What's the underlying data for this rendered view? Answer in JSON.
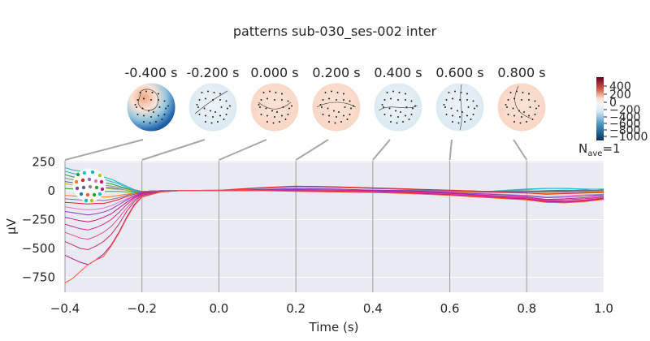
{
  "figure": {
    "title": "patterns sub-030_ses-002 inter",
    "nave_label": "N",
    "nave_subscript": "ave",
    "nave_value": "=1"
  },
  "topomaps": {
    "times": [
      "-0.400 s",
      "-0.200 s",
      "0.000 s",
      "0.200 s",
      "0.400 s",
      "0.600 s",
      "0.800 s"
    ],
    "anchor_times": [
      -0.4,
      -0.2,
      0.0,
      0.2,
      0.4,
      0.6,
      0.8
    ],
    "intensity": [
      1.0,
      0.12,
      0.15,
      0.18,
      0.1,
      0.1,
      0.15
    ],
    "colorbar": {
      "ticks": [
        "400",
        "200",
        "0",
        "−200",
        "−400",
        "−600",
        "−800",
        "−1000"
      ],
      "colors": {
        "high": "#67001f",
        "mid": "#f7f7f7",
        "low": "#053061"
      }
    }
  },
  "chart_data": {
    "type": "line",
    "title": "patterns sub-030_ses-002 inter",
    "xlabel": "Time (s)",
    "ylabel": "µV",
    "xlim": [
      -0.4,
      1.0
    ],
    "ylim": [
      -880,
      260
    ],
    "x_ticks": [
      "−0.4",
      "−0.2",
      "0.0",
      "0.2",
      "0.4",
      "0.6",
      "0.8",
      "1.0"
    ],
    "y_ticks": [
      "250",
      "0",
      "−250",
      "−500",
      "−750"
    ],
    "x_tick_values": [
      -0.4,
      -0.2,
      0.0,
      0.2,
      0.4,
      0.6,
      0.8,
      1.0
    ],
    "y_tick_values": [
      250,
      0,
      -250,
      -500,
      -750
    ],
    "grid": true,
    "x": [
      -0.4,
      -0.38,
      -0.36,
      -0.34,
      -0.32,
      -0.3,
      -0.28,
      -0.26,
      -0.24,
      -0.22,
      -0.2,
      -0.15,
      -0.1,
      0.0,
      0.1,
      0.2,
      0.3,
      0.4,
      0.5,
      0.6,
      0.7,
      0.8,
      0.85,
      0.9,
      0.95,
      1.0
    ],
    "series": [
      {
        "color": "#1fb5b5",
        "values": [
          200,
          180,
          170,
          150,
          130,
          120,
          100,
          70,
          40,
          10,
          -5,
          0,
          0,
          0,
          5,
          5,
          0,
          0,
          5,
          0,
          -5,
          15,
          20,
          20,
          10,
          15
        ]
      },
      {
        "color": "#17becf",
        "values": [
          170,
          150,
          140,
          120,
          110,
          100,
          80,
          60,
          30,
          5,
          -5,
          0,
          0,
          0,
          5,
          5,
          0,
          5,
          0,
          0,
          -5,
          10,
          20,
          20,
          15,
          10
        ]
      },
      {
        "color": "#2ca02c",
        "values": [
          140,
          120,
          110,
          95,
          80,
          70,
          60,
          40,
          20,
          0,
          -5,
          0,
          0,
          0,
          5,
          10,
          5,
          0,
          0,
          -5,
          -10,
          -5,
          0,
          5,
          0,
          5
        ]
      },
      {
        "color": "#8c8c8c",
        "values": [
          110,
          95,
          85,
          70,
          60,
          50,
          40,
          30,
          15,
          0,
          -5,
          0,
          0,
          0,
          10,
          15,
          10,
          5,
          0,
          0,
          -5,
          0,
          -5,
          0,
          5,
          0
        ]
      },
      {
        "color": "#5c5c8a",
        "values": [
          80,
          70,
          60,
          50,
          40,
          30,
          25,
          15,
          5,
          -5,
          -5,
          0,
          0,
          0,
          5,
          10,
          5,
          0,
          0,
          0,
          -5,
          -5,
          0,
          0,
          0,
          0
        ]
      },
      {
        "color": "#bcbd22",
        "values": [
          60,
          50,
          45,
          35,
          30,
          25,
          15,
          10,
          5,
          -5,
          -5,
          0,
          0,
          0,
          0,
          5,
          5,
          0,
          -5,
          -5,
          -10,
          -10,
          -15,
          -10,
          -5,
          -5
        ]
      },
      {
        "color": "#2ca02c",
        "values": [
          20,
          15,
          10,
          5,
          0,
          -5,
          -5,
          -5,
          -10,
          -10,
          -5,
          0,
          0,
          0,
          5,
          10,
          5,
          0,
          0,
          -5,
          -5,
          -10,
          -10,
          -5,
          -5,
          0
        ]
      },
      {
        "color": "#ff7f0e",
        "values": [
          -40,
          -45,
          -50,
          -55,
          -50,
          -55,
          -50,
          -40,
          -30,
          -20,
          -10,
          -5,
          0,
          0,
          5,
          10,
          5,
          0,
          -5,
          -10,
          -15,
          -20,
          -25,
          -20,
          -15,
          -10
        ]
      },
      {
        "color": "#9467bd",
        "values": [
          -70,
          -75,
          -80,
          -85,
          -80,
          -85,
          -75,
          -60,
          -40,
          -20,
          -10,
          0,
          0,
          5,
          20,
          35,
          30,
          20,
          10,
          0,
          -10,
          -10,
          -5,
          -10,
          -5,
          0
        ]
      },
      {
        "color": "#d62728",
        "values": [
          -100,
          -105,
          -110,
          -115,
          -110,
          -110,
          -95,
          -75,
          -50,
          -30,
          -15,
          -5,
          0,
          5,
          25,
          40,
          35,
          25,
          15,
          5,
          -5,
          -20,
          -30,
          -25,
          -20,
          -15
        ]
      },
      {
        "color": "#e377c2",
        "values": [
          -140,
          -150,
          -160,
          -165,
          -160,
          -150,
          -130,
          -100,
          -70,
          -40,
          -20,
          -5,
          0,
          5,
          10,
          15,
          10,
          5,
          0,
          -10,
          -25,
          -40,
          -50,
          -45,
          -35,
          -30
        ]
      },
      {
        "color": "#7f3fbf",
        "values": [
          -180,
          -190,
          -200,
          -210,
          -200,
          -185,
          -160,
          -120,
          -80,
          -45,
          -20,
          -5,
          0,
          0,
          10,
          20,
          15,
          5,
          0,
          -15,
          -30,
          -45,
          -60,
          -55,
          -45,
          -35
        ]
      },
      {
        "color": "#c71585",
        "values": [
          -230,
          -245,
          -260,
          -270,
          -255,
          -230,
          -200,
          -150,
          -100,
          -55,
          -25,
          -5,
          0,
          0,
          5,
          10,
          5,
          0,
          -5,
          -20,
          -40,
          -55,
          -75,
          -70,
          -60,
          -45
        ]
      },
      {
        "color": "#d62790",
        "values": [
          -290,
          -310,
          -330,
          -340,
          -320,
          -290,
          -250,
          -190,
          -120,
          -65,
          -30,
          -5,
          0,
          0,
          5,
          5,
          0,
          -5,
          -10,
          -25,
          -45,
          -60,
          -80,
          -80,
          -70,
          -55
        ]
      },
      {
        "color": "#e84c8a",
        "values": [
          -360,
          -385,
          -410,
          -420,
          -395,
          -360,
          -310,
          -235,
          -150,
          -80,
          -35,
          -5,
          0,
          0,
          0,
          5,
          0,
          -5,
          -15,
          -30,
          -50,
          -65,
          -85,
          -90,
          -80,
          -60
        ]
      },
      {
        "color": "#c03060",
        "values": [
          -440,
          -470,
          -500,
          -510,
          -480,
          -440,
          -380,
          -290,
          -180,
          -95,
          -40,
          -5,
          0,
          0,
          0,
          0,
          -5,
          -10,
          -20,
          -35,
          -55,
          -70,
          -90,
          -95,
          -85,
          -65
        ]
      },
      {
        "color": "#b5179e",
        "values": [
          -560,
          -590,
          -620,
          -640,
          -600,
          -550,
          -470,
          -360,
          -230,
          -120,
          -50,
          -10,
          0,
          0,
          0,
          0,
          -5,
          -10,
          -20,
          -35,
          -55,
          -75,
          -95,
          -100,
          -90,
          -70
        ]
      },
      {
        "color": "#ff5a36",
        "values": [
          -800,
          -760,
          -700,
          -640,
          -600,
          -570,
          -480,
          -370,
          -240,
          -130,
          -55,
          -10,
          0,
          0,
          0,
          -5,
          -10,
          -15,
          -25,
          -40,
          -60,
          -80,
          -100,
          -105,
          -95,
          -75
        ]
      }
    ]
  }
}
